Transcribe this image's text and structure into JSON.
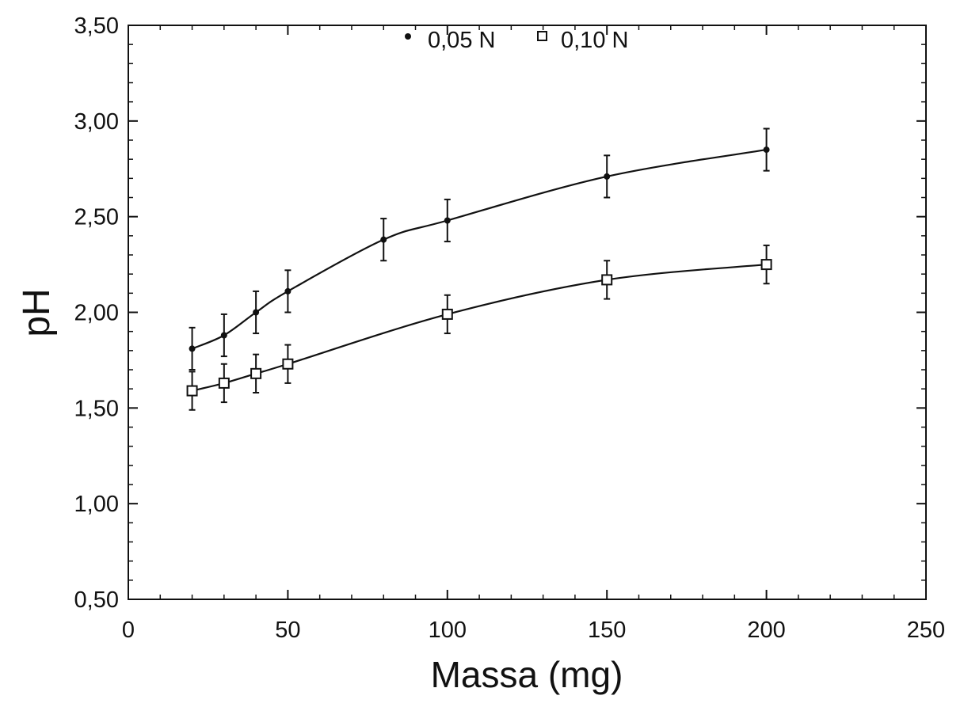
{
  "chart_data": {
    "type": "line",
    "title": "",
    "xlabel": "Massa (mg)",
    "ylabel": "pH",
    "xlim": [
      0,
      250
    ],
    "ylim": [
      0.5,
      3.5
    ],
    "x_ticks": [
      "0",
      "50",
      "100",
      "150",
      "200",
      "250"
    ],
    "y_ticks": [
      "0,50",
      "1,00",
      "1,50",
      "2,00",
      "2,50",
      "3,00",
      "3,50"
    ],
    "grid": false,
    "legend_position": "top-center",
    "series": [
      {
        "name": "0,05 N",
        "marker": "filled-circle",
        "color": "#111111",
        "x": [
          20,
          30,
          40,
          50,
          80,
          100,
          150,
          200
        ],
        "y": [
          1.81,
          1.88,
          2.0,
          2.11,
          2.38,
          2.48,
          2.71,
          2.85
        ],
        "error": [
          0.11,
          0.11,
          0.11,
          0.11,
          0.11,
          0.11,
          0.11,
          0.11
        ]
      },
      {
        "name": "0,10 N",
        "marker": "open-square",
        "color": "#111111",
        "x": [
          20,
          30,
          40,
          50,
          100,
          150,
          200
        ],
        "y": [
          1.59,
          1.63,
          1.68,
          1.73,
          1.99,
          2.17,
          2.25
        ],
        "error": [
          0.1,
          0.1,
          0.1,
          0.1,
          0.1,
          0.1,
          0.1
        ]
      }
    ]
  }
}
